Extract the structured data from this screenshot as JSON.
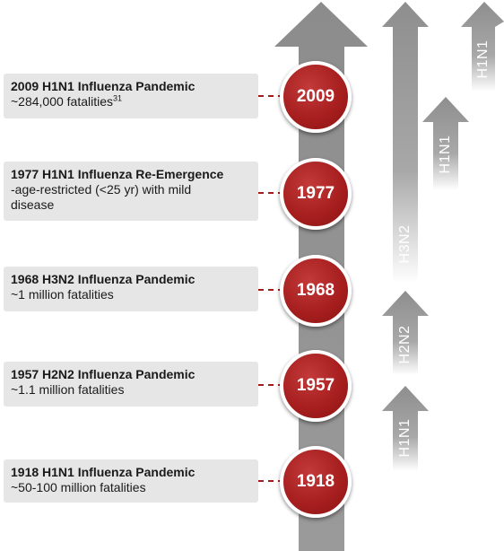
{
  "timeline": {
    "events": [
      {
        "title": "2009 H1N1 Influenza Pandemic",
        "detail": "~284,000 fatalities",
        "sup": "31",
        "year": "2009"
      },
      {
        "title": "1977 H1N1 Influenza Re-Emergence",
        "detail": "-age-restricted (<25 yr) with mild disease",
        "sup": "",
        "year": "1977"
      },
      {
        "title": "1968 H3N2 Influenza Pandemic",
        "detail": "~1 million fatalities",
        "sup": "",
        "year": "1968"
      },
      {
        "title": "1957 H2N2 Influenza Pandemic",
        "detail": "~1.1 million fatalities",
        "sup": "",
        "year": "1957"
      },
      {
        "title": "1918 H1N1 Influenza Pandemic",
        "detail": "~50-100 million fatalities",
        "sup": "",
        "year": "1918"
      }
    ]
  },
  "subtypes": [
    {
      "label": "H1N1"
    },
    {
      "label": "H2N2"
    },
    {
      "label": "H3N2"
    },
    {
      "label": "H1N1"
    },
    {
      "label": "H1N1"
    }
  ],
  "colors": {
    "circle": "#a81f1f",
    "arrow_dark": "#8a8a8a",
    "arrow_light": "#f2f2f2",
    "box": "#e6e6e6",
    "connector": "#a31c1c"
  }
}
